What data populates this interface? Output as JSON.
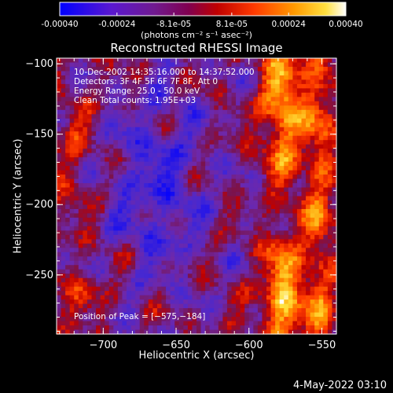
{
  "colors": {
    "background": "#000000",
    "foreground": "#ffffff"
  },
  "colorbar": {
    "ticks": [
      "-0.00040",
      "-0.00024",
      "-8.1e-05",
      "8.1e-05",
      "0.00024",
      "0.00040"
    ],
    "tick_values": [
      -0.0004,
      -0.00024,
      -8.1e-05,
      8.1e-05,
      0.00024,
      0.0004
    ],
    "range": [
      -0.0004,
      0.0004
    ],
    "unit_label": "(photons cm⁻² s⁻¹ asec⁻²)",
    "colormap": [
      "#0000ff",
      "#6020c0",
      "#802060",
      "#b00000",
      "#ff3000",
      "#ff9000",
      "#ffe040",
      "#ffffff"
    ]
  },
  "chart_data": {
    "type": "heatmap",
    "title": "Reconstructed RHESSI Image",
    "xlabel": "Heliocentric X (arcsec)",
    "ylabel": "Heliocentric Y (arcsec)",
    "xlim": [
      -732,
      -540
    ],
    "ylim": [
      -292,
      -96
    ],
    "xticks": [
      -700,
      -650,
      -600,
      -550
    ],
    "yticks": [
      -100,
      -150,
      -200,
      -250
    ],
    "xtick_labels": [
      "−700",
      "−650",
      "−600",
      "−550"
    ],
    "ytick_labels": [
      "−100",
      "−150",
      "−200",
      "−250"
    ],
    "grid": false,
    "annotations": [
      "10-Dec-2002 14:35:16.000 to 14:37:52.000",
      "Detectors: 3F 4F 5F 6F 7F 8F, Att 0",
      "Energy Range: 25.0 - 50.0 keV",
      "Clean    Total counts: 1.95E+03"
    ],
    "peak_label": "Position of Peak = [−575,−184]",
    "peak": [
      -575,
      -184
    ],
    "total_counts": 1950,
    "energy_range_keV": [
      25.0,
      50.0
    ],
    "time_range": [
      "10-Dec-2002 14:35:16.000",
      "14:37:52.000"
    ]
  },
  "footer": {
    "timestamp": "4-May-2022 03:10"
  }
}
